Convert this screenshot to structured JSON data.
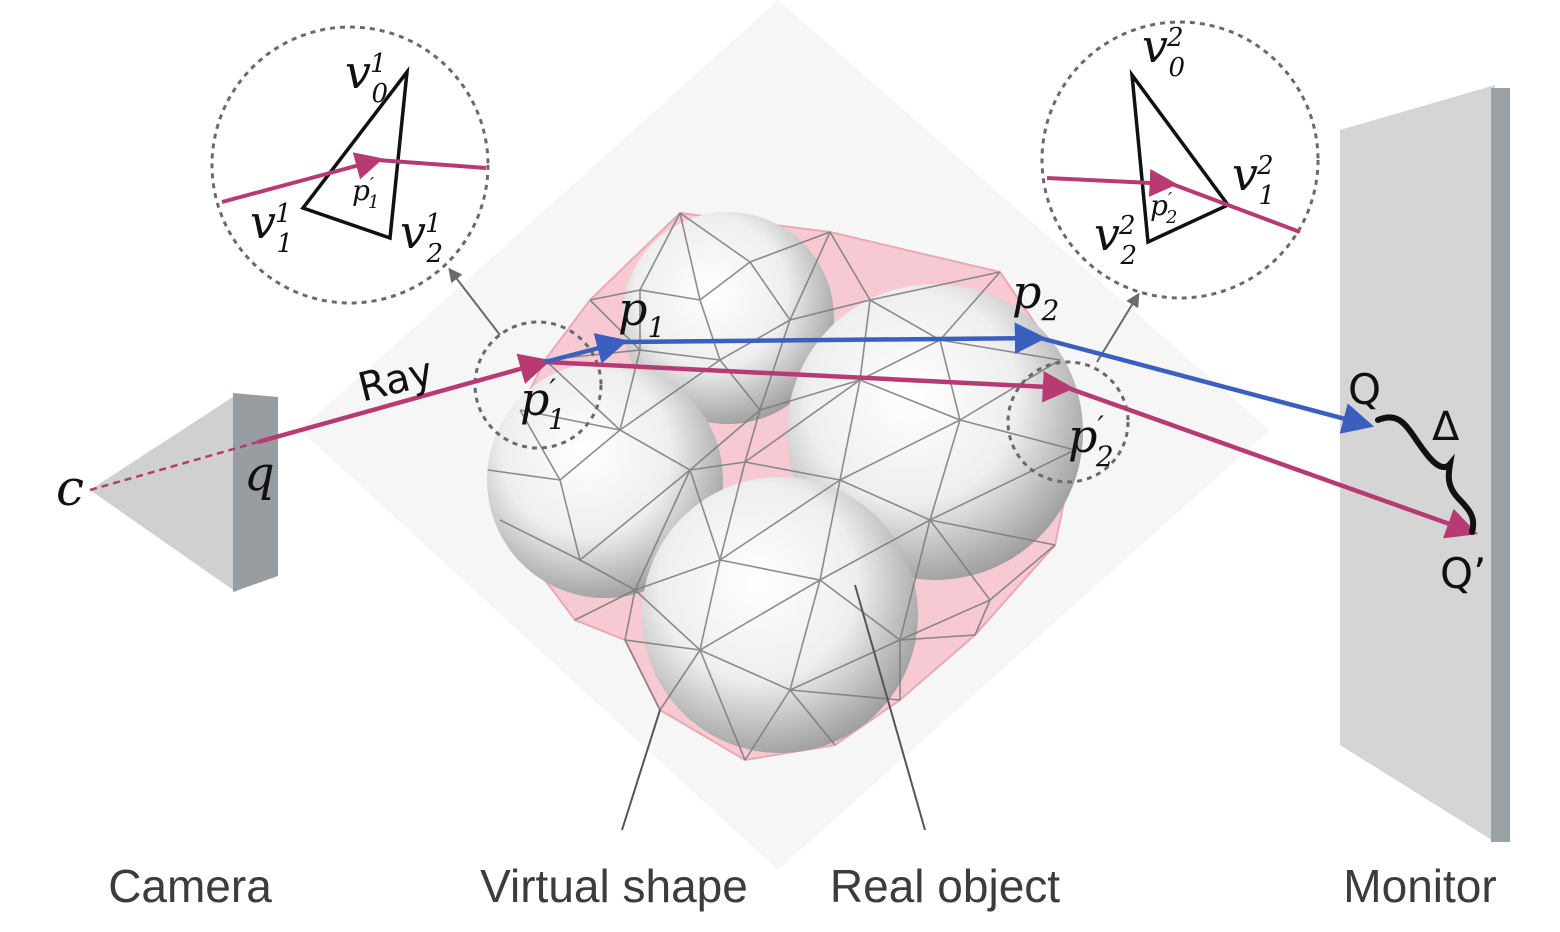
{
  "labels": {
    "camera": "Camera",
    "virtual_shape": "Virtual shape",
    "real_object": "Real object",
    "monitor": "Monitor",
    "ray": "Ray",
    "c": "c",
    "q": "q",
    "p": "p",
    "Q": "Q",
    "Q_prime": "Q’",
    "delta": "Δ",
    "v": "v"
  },
  "indices": {
    "one": "1",
    "two": "2",
    "zero": "0",
    "prime": "′"
  },
  "colors": {
    "ray": "#b83a73",
    "refracted": "#3a5fbf",
    "virtual_shape": "#f7c9d2",
    "camera": "#d0d0d0",
    "camera_sensor": "#979da1",
    "monitor": "#d5d5d5",
    "monitor_edge": "#9aa1a4",
    "callout": "#6a6a6a"
  }
}
